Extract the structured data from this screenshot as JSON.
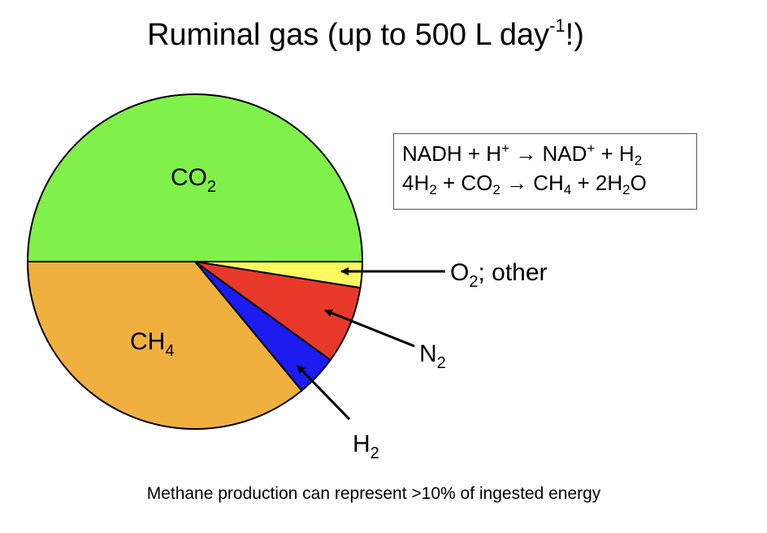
{
  "title_main": "Ruminal gas (up to 500 L day",
  "title_sup": "-1",
  "title_end": "!)",
  "chart_data": {
    "type": "pie",
    "slices": [
      {
        "label": "CO2",
        "label_base": "CO",
        "label_sub": "2",
        "value": 50,
        "color": "#80f04a"
      },
      {
        "label": "O2; other",
        "label_base": "O",
        "label_sub": "2",
        "label_tail": "; other",
        "value": 2.5,
        "color": "#fafa60"
      },
      {
        "label": "N2",
        "label_base": "N",
        "label_sub": "2",
        "value": 7.5,
        "color": "#e8382a"
      },
      {
        "label": "H2",
        "label_base": "H",
        "label_sub": "2",
        "value": 4,
        "color": "#1b1cf0"
      },
      {
        "label": "CH4",
        "label_base": "CH",
        "label_sub": "4",
        "value": 36,
        "color": "#f0b040"
      }
    ]
  },
  "equations": [
    {
      "parts": [
        [
          "t",
          "NADH + H"
        ],
        [
          "sup",
          "+"
        ],
        [
          "t",
          " → NAD"
        ],
        [
          "sup",
          "+"
        ],
        [
          "t",
          " + H"
        ],
        [
          "sub",
          "2"
        ]
      ]
    },
    {
      "parts": [
        [
          "t",
          "4H"
        ],
        [
          "sub",
          "2"
        ],
        [
          "t",
          " + CO"
        ],
        [
          "sub",
          "2"
        ],
        [
          "t",
          " → CH"
        ],
        [
          "sub",
          "4"
        ],
        [
          "t",
          " + 2H"
        ],
        [
          "sub",
          "2"
        ],
        [
          "t",
          "O"
        ]
      ]
    }
  ],
  "footer": "Methane production can represent >10% of ingested energy"
}
